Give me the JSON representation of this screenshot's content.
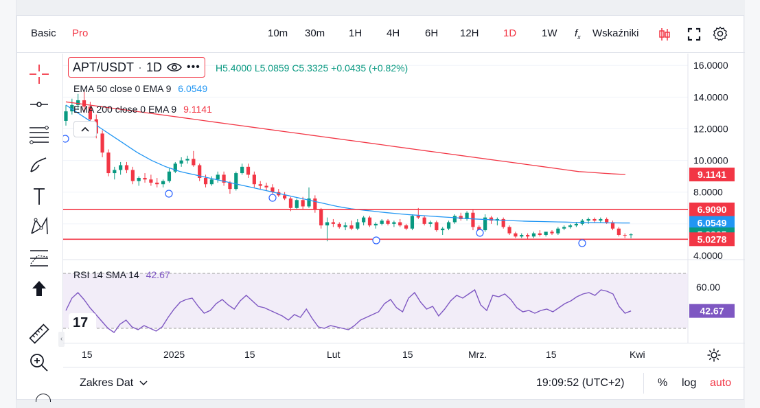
{
  "topbar": {
    "mode_basic": "Basic",
    "mode_pro": "Pro",
    "intervals": [
      "10m",
      "30m",
      "1H",
      "4H",
      "6H",
      "12H",
      "1D",
      "1W"
    ],
    "active_interval": "1D",
    "indicators_label": "Wskaźniki"
  },
  "legend": {
    "symbol": "APT/USDT",
    "interval": "1D",
    "ohlc_text": "H5.4000  L5.0859  C5.3325  +0.0435 (+0.82%)",
    "ema50_label": "EMA 50 close 0 EMA 9",
    "ema50_value": "6.0549",
    "ema200_label": "EMA 200 close 0 EMA 9",
    "ema200_value": "9.1141",
    "rsi_label": "RSI 14 SMA 14",
    "rsi_value": "42.67"
  },
  "price_axis": {
    "ticks": [
      "16.0000",
      "14.0000",
      "12.0000",
      "10.0000",
      "8.0000",
      "4.0000"
    ],
    "labels": [
      {
        "value": "9.1141",
        "color": "#f23645"
      },
      {
        "value": "6.9090",
        "color": "#f23645"
      },
      {
        "value": "6.0549",
        "color": "#2196f3"
      },
      {
        "value": "5.3325",
        "color": "#089981"
      },
      {
        "value": "5.0278",
        "color": "#f23645"
      }
    ]
  },
  "rsi_axis": {
    "ticks": [
      "60.00"
    ],
    "current": "42.67"
  },
  "time_axis": {
    "labels": [
      "15",
      "2025",
      "15",
      "Lut",
      "15",
      "Mrz.",
      "15",
      "Kwi"
    ]
  },
  "statusbar": {
    "date_range": "Zakres Dat",
    "clock": "19:09:52 (UTC+2)",
    "percent": "%",
    "log": "log",
    "auto": "auto"
  },
  "colors": {
    "up": "#089981",
    "down": "#f23645",
    "ema50": "#2196f3",
    "ema200": "#f23645",
    "rsi": "#7e57c2",
    "accent": "#f23645"
  },
  "chart_data": {
    "type": "candlestick",
    "title": "APT/USDT · 1D",
    "horizontal_lines": [
      6.909,
      5.0278
    ],
    "ylim": [
      4.0,
      16.0
    ],
    "rsi_band": [
      30,
      70
    ],
    "candles": [
      [
        12.5,
        13.5,
        12.2,
        13.1
      ],
      [
        13.1,
        13.9,
        12.9,
        13.5
      ],
      [
        13.5,
        14.2,
        13.2,
        13.8
      ],
      [
        13.8,
        14.4,
        13.0,
        13.4
      ],
      [
        13.4,
        13.7,
        12.4,
        12.6
      ],
      [
        12.6,
        12.9,
        11.4,
        11.7
      ],
      [
        11.7,
        11.9,
        10.2,
        10.5
      ],
      [
        10.5,
        10.7,
        9.0,
        9.2
      ],
      [
        9.2,
        9.6,
        8.8,
        9.4
      ],
      [
        9.4,
        9.9,
        9.1,
        9.7
      ],
      [
        9.7,
        9.9,
        9.2,
        9.4
      ],
      [
        9.4,
        9.6,
        8.5,
        8.7
      ],
      [
        8.7,
        9.0,
        8.4,
        8.9
      ],
      [
        8.9,
        9.2,
        8.6,
        8.8
      ],
      [
        8.8,
        9.1,
        8.4,
        8.6
      ],
      [
        8.6,
        8.9,
        8.3,
        8.5
      ],
      [
        8.5,
        8.8,
        8.3,
        8.7
      ],
      [
        8.7,
        9.5,
        8.6,
        9.3
      ],
      [
        9.3,
        9.9,
        9.2,
        9.8
      ],
      [
        9.8,
        10.2,
        9.6,
        10.0
      ],
      [
        10.0,
        10.3,
        9.8,
        10.1
      ],
      [
        10.1,
        10.6,
        9.6,
        9.7
      ],
      [
        9.7,
        9.8,
        8.7,
        8.9
      ],
      [
        8.9,
        9.1,
        8.3,
        8.5
      ],
      [
        8.5,
        9.0,
        8.4,
        8.8
      ],
      [
        8.8,
        9.3,
        8.6,
        9.1
      ],
      [
        9.1,
        9.3,
        8.4,
        8.6
      ],
      [
        8.6,
        8.7,
        7.9,
        8.2
      ],
      [
        8.2,
        9.3,
        8.1,
        9.2
      ],
      [
        9.2,
        9.8,
        9.1,
        9.6
      ],
      [
        9.6,
        9.8,
        8.9,
        9.1
      ],
      [
        9.1,
        9.3,
        8.3,
        8.5
      ],
      [
        8.5,
        8.7,
        8.2,
        8.4
      ],
      [
        8.4,
        8.6,
        8.1,
        8.3
      ],
      [
        8.3,
        8.5,
        7.9,
        8.0
      ],
      [
        8.0,
        8.2,
        7.7,
        7.8
      ],
      [
        7.8,
        8.0,
        7.5,
        7.6
      ],
      [
        7.6,
        7.7,
        6.8,
        7.0
      ],
      [
        7.0,
        7.6,
        6.9,
        7.5
      ],
      [
        7.5,
        7.7,
        6.9,
        7.1
      ],
      [
        7.1,
        8.3,
        7.0,
        7.6
      ],
      [
        7.6,
        7.8,
        6.7,
        6.9
      ],
      [
        6.9,
        7.0,
        5.7,
        5.9
      ],
      [
        5.9,
        6.4,
        4.9,
        6.1
      ],
      [
        6.1,
        6.3,
        5.8,
        6.0
      ],
      [
        6.0,
        6.1,
        5.7,
        5.8
      ],
      [
        5.8,
        6.1,
        5.6,
        5.9
      ],
      [
        5.9,
        6.2,
        5.6,
        5.7
      ],
      [
        5.7,
        6.3,
        5.6,
        6.1
      ],
      [
        6.1,
        6.5,
        5.9,
        6.4
      ],
      [
        6.4,
        6.5,
        5.8,
        5.9
      ],
      [
        5.9,
        6.1,
        5.7,
        6.0
      ],
      [
        6.0,
        6.3,
        5.9,
        6.2
      ],
      [
        6.2,
        6.3,
        5.9,
        6.0
      ],
      [
        6.0,
        6.2,
        5.8,
        6.1
      ],
      [
        6.1,
        6.3,
        5.8,
        5.9
      ],
      [
        5.9,
        6.0,
        5.6,
        5.7
      ],
      [
        5.7,
        6.6,
        5.6,
        6.5
      ],
      [
        6.5,
        7.0,
        6.3,
        6.4
      ],
      [
        6.4,
        6.5,
        5.9,
        6.0
      ],
      [
        6.0,
        6.2,
        5.8,
        6.1
      ],
      [
        6.1,
        6.2,
        5.5,
        5.6
      ],
      [
        5.6,
        5.8,
        5.3,
        5.7
      ],
      [
        5.7,
        6.2,
        5.6,
        6.1
      ],
      [
        6.1,
        6.6,
        6.0,
        6.5
      ],
      [
        6.5,
        6.7,
        6.2,
        6.3
      ],
      [
        6.3,
        6.8,
        6.2,
        6.7
      ],
      [
        6.7,
        6.9,
        5.6,
        5.8
      ],
      [
        5.8,
        5.9,
        5.2,
        5.6
      ],
      [
        5.6,
        6.6,
        5.5,
        6.4
      ],
      [
        6.4,
        6.5,
        6.0,
        6.2
      ],
      [
        6.2,
        6.4,
        5.9,
        6.3
      ],
      [
        6.3,
        6.4,
        5.7,
        5.8
      ],
      [
        5.8,
        5.9,
        5.3,
        5.4
      ],
      [
        5.4,
        5.5,
        5.1,
        5.2
      ],
      [
        5.2,
        5.4,
        5.1,
        5.3
      ],
      [
        5.3,
        5.4,
        5.0,
        5.2
      ],
      [
        5.2,
        5.5,
        5.1,
        5.4
      ],
      [
        5.4,
        5.6,
        5.2,
        5.3
      ],
      [
        5.3,
        5.5,
        5.2,
        5.5
      ],
      [
        5.5,
        5.6,
        5.3,
        5.4
      ],
      [
        5.4,
        5.8,
        5.3,
        5.7
      ],
      [
        5.7,
        5.9,
        5.6,
        5.8
      ],
      [
        5.8,
        6.0,
        5.7,
        5.9
      ],
      [
        5.9,
        6.1,
        5.8,
        6.0
      ],
      [
        6.0,
        6.3,
        5.9,
        6.2
      ],
      [
        6.2,
        6.4,
        6.0,
        6.3
      ],
      [
        6.3,
        6.4,
        6.1,
        6.2
      ],
      [
        6.2,
        6.4,
        6.1,
        6.3
      ],
      [
        6.3,
        6.4,
        6.0,
        6.1
      ],
      [
        6.1,
        6.2,
        5.6,
        5.7
      ],
      [
        5.7,
        5.8,
        5.2,
        5.3
      ],
      [
        5.3,
        5.4,
        5.1,
        5.29
      ],
      [
        5.29,
        5.4,
        5.0859,
        5.3325
      ]
    ],
    "ema50": [
      13.5,
      13.2,
      12.9,
      12.6,
      12.3,
      12.0,
      11.7,
      11.4,
      11.1,
      10.8,
      10.5,
      10.25,
      10.0,
      9.8,
      9.6,
      9.45,
      9.3,
      9.2,
      9.1,
      9.0,
      8.9,
      8.8,
      8.7,
      8.6,
      8.5,
      8.4,
      8.3,
      8.2,
      8.1,
      8.0,
      7.9,
      7.8,
      7.7,
      7.6,
      7.5,
      7.4,
      7.3,
      7.2,
      7.1,
      7.02,
      6.95,
      6.9,
      6.85,
      6.8,
      6.75,
      6.7,
      6.66,
      6.62,
      6.58,
      6.55,
      6.52,
      6.49,
      6.46,
      6.43,
      6.4,
      6.37,
      6.34,
      6.31,
      6.29,
      6.27,
      6.25,
      6.23,
      6.21,
      6.19,
      6.17,
      6.16,
      6.15,
      6.14,
      6.13,
      6.12,
      6.11,
      6.1,
      6.09,
      6.08,
      6.07,
      6.07,
      6.06,
      6.06,
      6.055,
      6.055
    ],
    "ema200": [
      13.7,
      13.6,
      13.5,
      13.4,
      13.3,
      13.2,
      13.1,
      13.0,
      12.9,
      12.8,
      12.7,
      12.6,
      12.5,
      12.4,
      12.3,
      12.2,
      12.1,
      12.0,
      11.9,
      11.8,
      11.7,
      11.6,
      11.5,
      11.4,
      11.3,
      11.2,
      11.1,
      11.0,
      10.9,
      10.8,
      10.7,
      10.6,
      10.5,
      10.4,
      10.3,
      10.2,
      10.1,
      10.0,
      9.9,
      9.8,
      9.7,
      9.6,
      9.5,
      9.4,
      9.3,
      9.25,
      9.2,
      9.15,
      9.1141
    ],
    "rsi": [
      43,
      52,
      56,
      51,
      45,
      40,
      35,
      30,
      27,
      33,
      36,
      31,
      29,
      32,
      30,
      28,
      31,
      38,
      44,
      49,
      51,
      52,
      46,
      41,
      43,
      48,
      51,
      47,
      44,
      50,
      54,
      50,
      46,
      45,
      43,
      41,
      39,
      36,
      40,
      38,
      44,
      37,
      31,
      30,
      32,
      31,
      30,
      29,
      32,
      36,
      38,
      40,
      42,
      48,
      51,
      45,
      42,
      52,
      56,
      49,
      44,
      46,
      39,
      44,
      50,
      54,
      52,
      55,
      58,
      47,
      43,
      54,
      53,
      55,
      51,
      45,
      42,
      43,
      41,
      43,
      44,
      42,
      45,
      48,
      50,
      53,
      55,
      56,
      54,
      58,
      57,
      55,
      46,
      41,
      42.67
    ]
  }
}
